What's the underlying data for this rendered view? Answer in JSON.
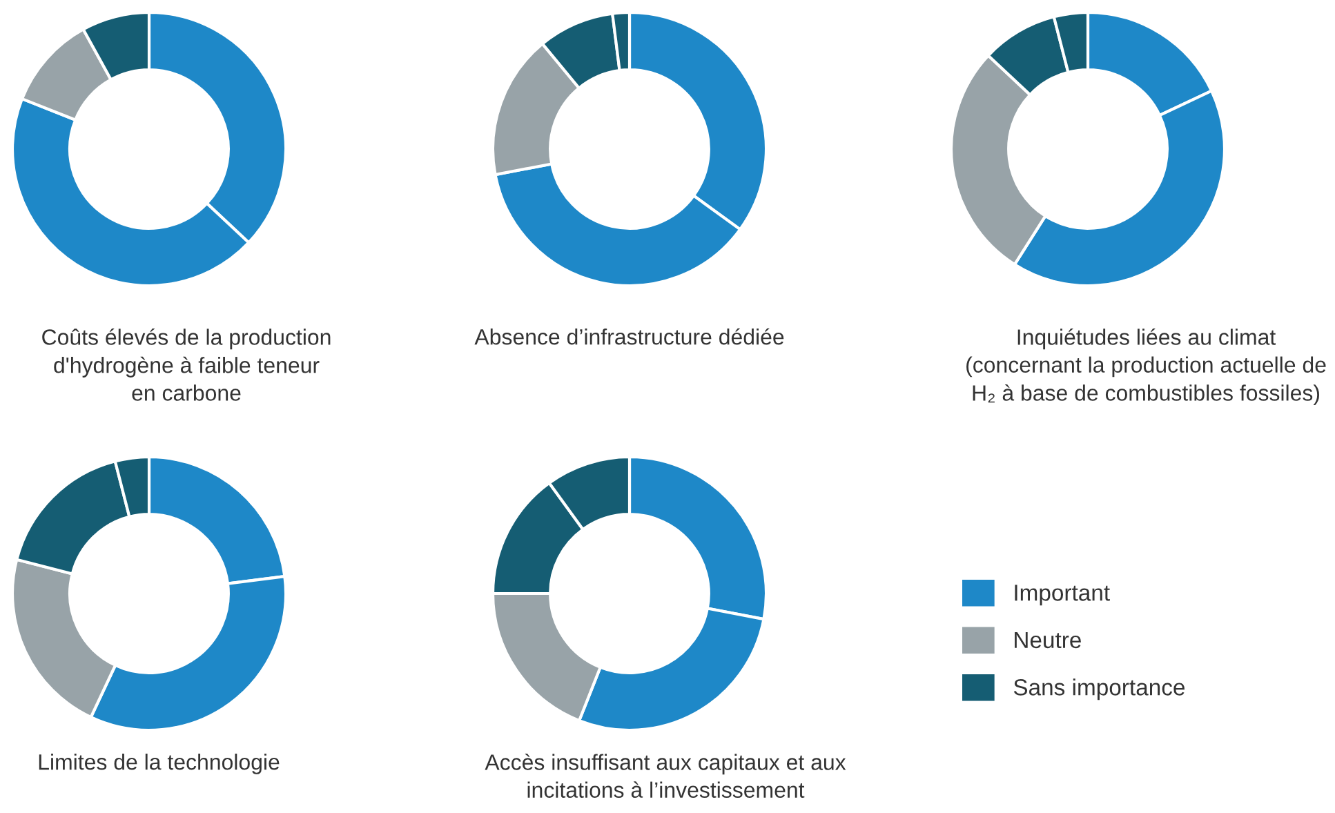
{
  "chart_data": [
    {
      "type": "donut",
      "title": "Coûts élevés de la production\nd'hydrogène à faible teneur\nen carbone",
      "categories": [
        "Important",
        null,
        "Neutre",
        "Sans importance"
      ],
      "values": [
        37,
        44,
        11,
        8
      ],
      "colors": [
        "#1e88c8",
        "#1e88c8",
        "#98a3a8",
        "#155d73"
      ],
      "legend": "right"
    },
    {
      "type": "donut",
      "title": "Absence d’infrastructure dédiée",
      "categories": [
        null,
        null,
        null,
        null,
        null
      ],
      "values": [
        35,
        37,
        17,
        9,
        2
      ],
      "colors": [
        "#1e88c8",
        "#1e88c8",
        "#98a3a8",
        "#155d73",
        "#155d73"
      ]
    },
    {
      "type": "donut",
      "title": "Inquiétudes liées au climat\n(concernant la production actuelle de\nH₂ à base de combustibles fossiles)",
      "categories": [
        null,
        null,
        null,
        null,
        null
      ],
      "values": [
        18,
        41,
        28,
        9,
        4
      ],
      "colors": [
        "#1e88c8",
        "#1e88c8",
        "#98a3a8",
        "#155d73",
        "#155d73"
      ]
    },
    {
      "type": "donut",
      "title": "Limites de la technologie",
      "categories": [
        null,
        null,
        null,
        null,
        null
      ],
      "values": [
        23,
        34,
        22,
        17,
        4
      ],
      "colors": [
        "#1e88c8",
        "#1e88c8",
        "#98a3a8",
        "#155d73",
        "#155d73"
      ]
    },
    {
      "type": "donut",
      "title": "Accès insuffisant aux capitaux et aux\nincitations à l’investissement",
      "categories": [
        null,
        null,
        null,
        null,
        null
      ],
      "values": [
        28,
        28,
        19,
        15,
        10
      ],
      "colors": [
        "#1e88c8",
        "#1e88c8",
        "#98a3a8",
        "#155d73",
        "#155d73"
      ]
    }
  ]
}
